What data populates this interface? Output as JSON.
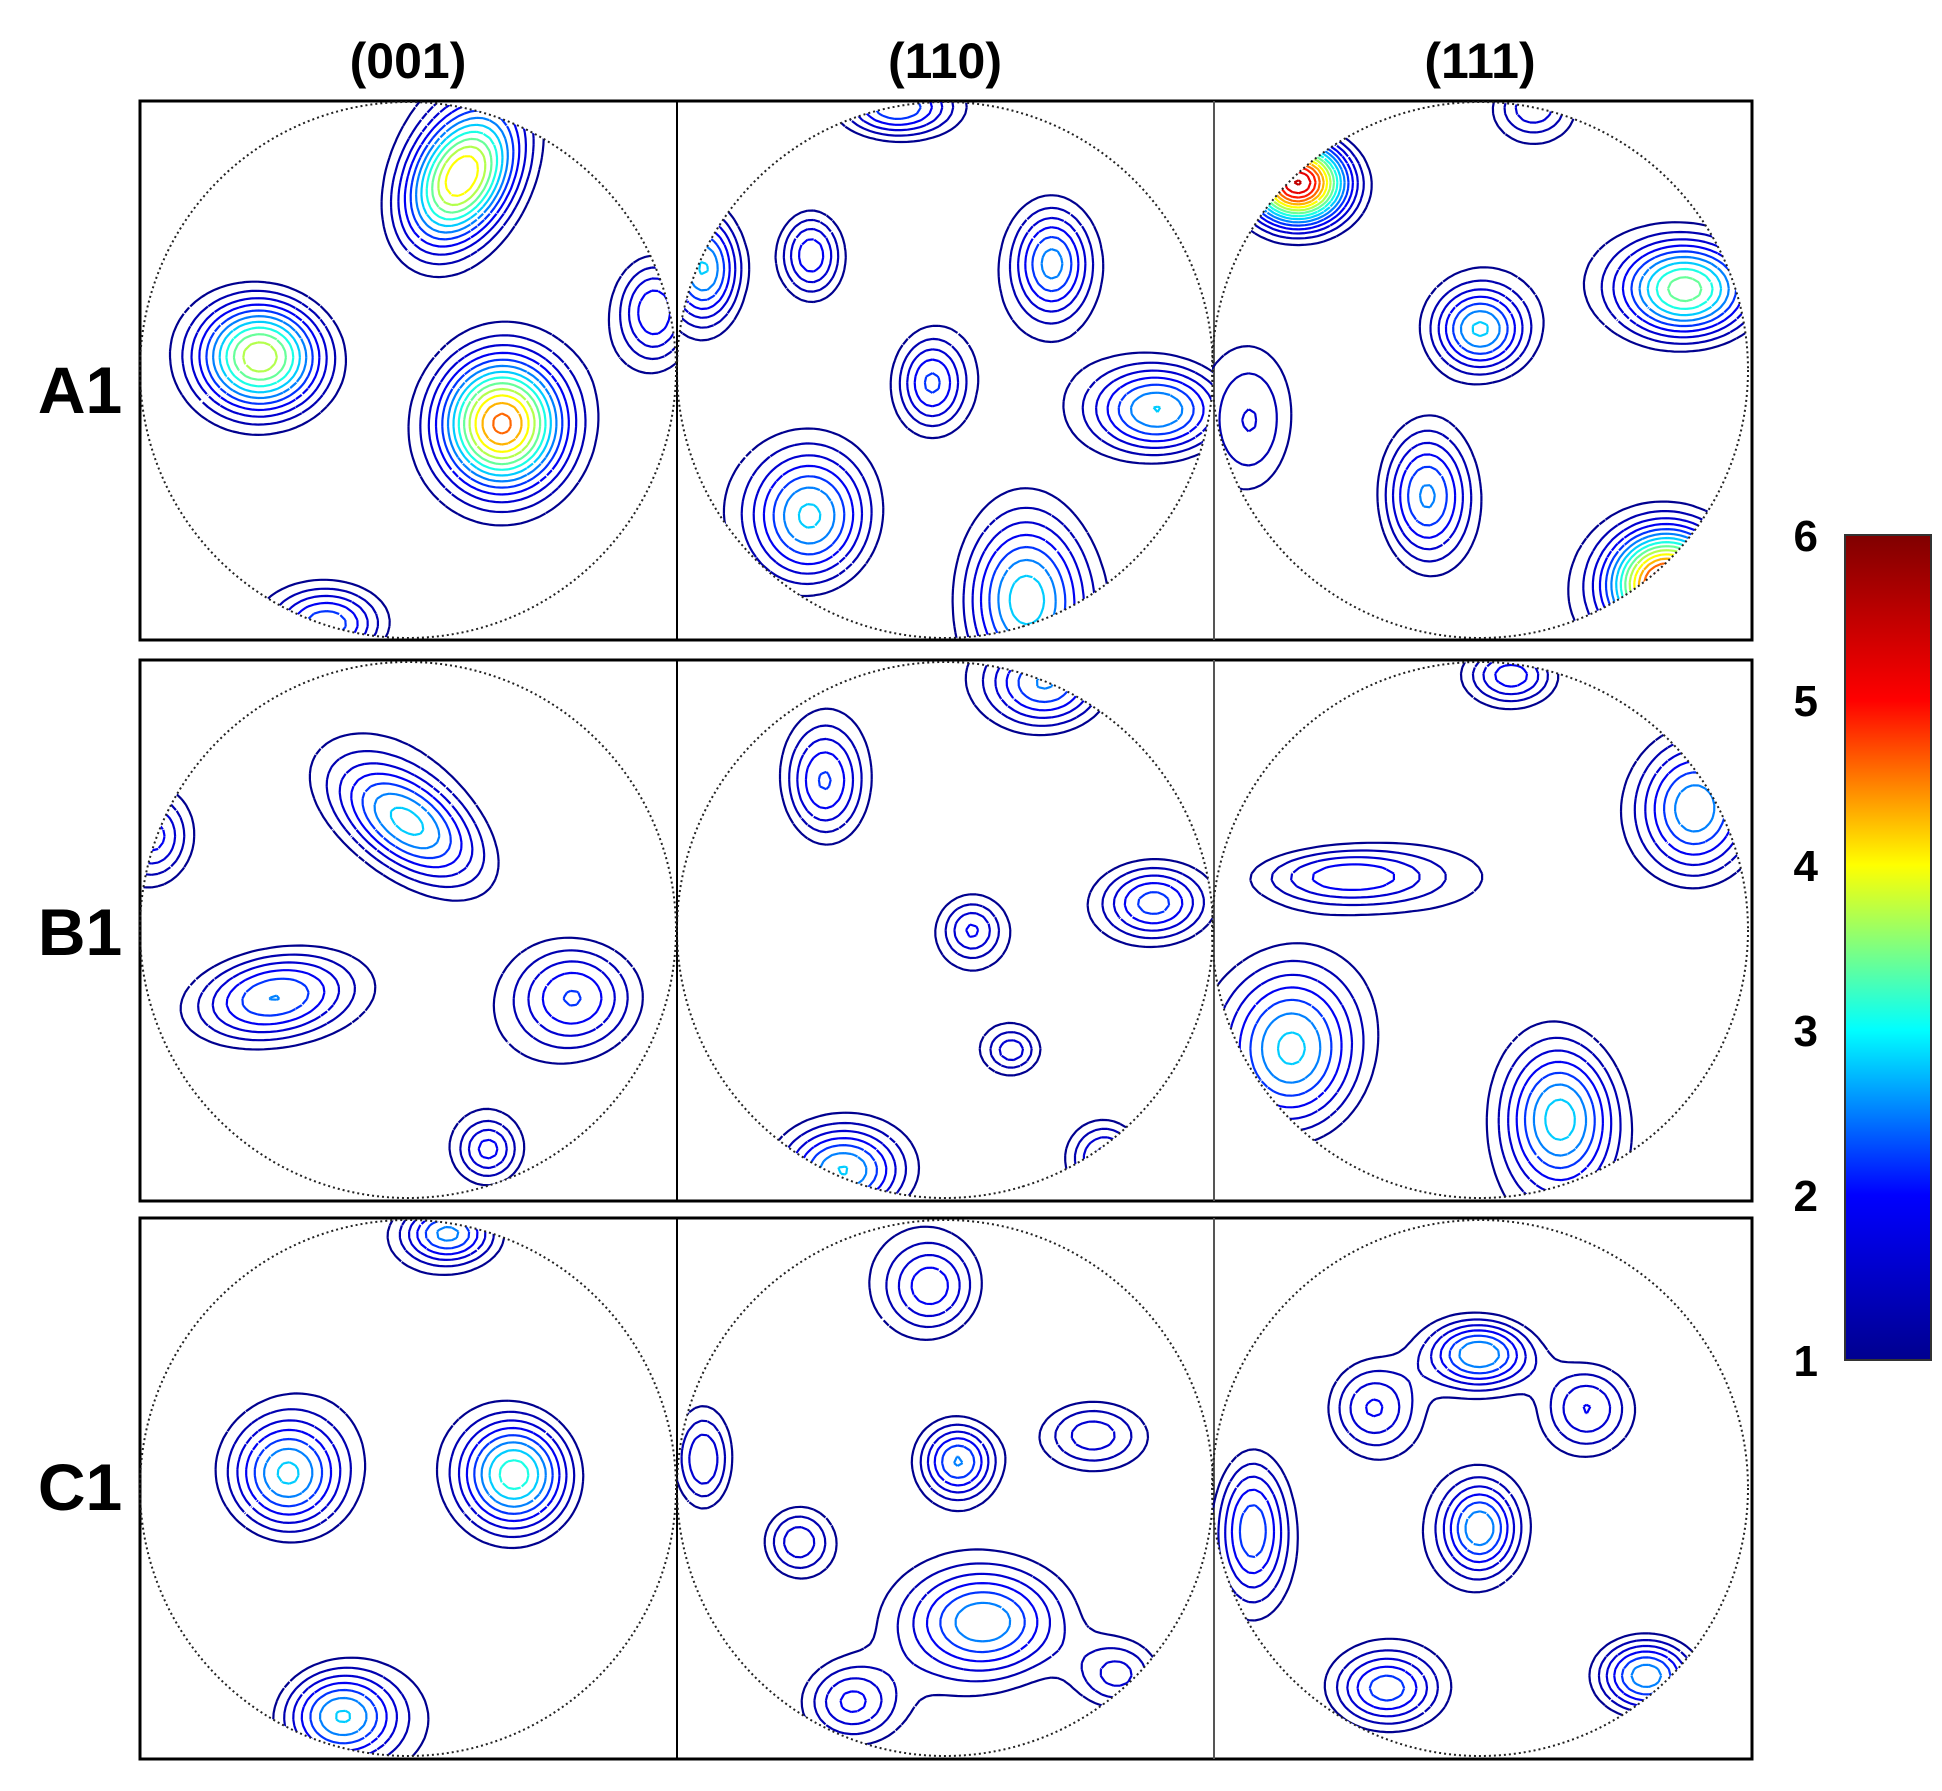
{
  "chart_data": {
    "type": "pole-figure-contour",
    "columns": [
      "(001)",
      "(110)",
      "(111)"
    ],
    "rows": [
      "A1",
      "B1",
      "C1"
    ],
    "colorbar": {
      "min": 1,
      "max": 6,
      "ticks": [
        "1",
        "2",
        "3",
        "4",
        "5",
        "6"
      ],
      "colormap": [
        "#00008f",
        "#0000ff",
        "#00ffff",
        "#ffff00",
        "#ff0000",
        "#800000"
      ]
    },
    "panels": [
      {
        "row": "A1",
        "column": "(001)",
        "peaks": [
          {
            "u": 0.2,
            "v": -0.72,
            "max": 4.3,
            "sx": 0.13,
            "sy": 0.2,
            "rot": 30
          },
          {
            "u": -0.55,
            "v": -0.05,
            "max": 4.2,
            "sx": 0.17,
            "sy": 0.15,
            "rot": 0
          },
          {
            "u": 0.35,
            "v": 0.2,
            "max": 4.5,
            "sx": 0.16,
            "sy": 0.17,
            "rot": 0
          },
          {
            "u": -0.3,
            "v": 0.95,
            "max": 2.6,
            "sx": 0.15,
            "sy": 0.1,
            "rot": 0
          },
          {
            "u": 0.92,
            "v": -0.22,
            "max": 2.2,
            "sx": 0.1,
            "sy": 0.14,
            "rot": 0
          }
        ]
      },
      {
        "row": "A1",
        "column": "(110)",
        "peaks": [
          {
            "u": -0.18,
            "v": -0.98,
            "max": 2.6,
            "sx": 0.15,
            "sy": 0.08,
            "rot": 0
          },
          {
            "u": -0.5,
            "v": -0.43,
            "max": 2.4,
            "sx": 0.09,
            "sy": 0.12,
            "rot": 0
          },
          {
            "u": 0.4,
            "v": -0.4,
            "max": 2.5,
            "sx": 0.1,
            "sy": 0.14,
            "rot": 0
          },
          {
            "u": -0.9,
            "v": -0.38,
            "max": 3.0,
            "sx": 0.1,
            "sy": 0.15,
            "rot": 0
          },
          {
            "u": -0.05,
            "v": 0.05,
            "max": 2.2,
            "sx": 0.09,
            "sy": 0.12,
            "rot": 0
          },
          {
            "u": 0.8,
            "v": 0.15,
            "max": 3.0,
            "sx": 0.18,
            "sy": 0.12,
            "rot": 0
          },
          {
            "u": -0.5,
            "v": 0.55,
            "max": 3.0,
            "sx": 0.16,
            "sy": 0.18,
            "rot": 0
          },
          {
            "u": 0.3,
            "v": 0.85,
            "max": 3.0,
            "sx": 0.16,
            "sy": 0.22,
            "rot": 0
          }
        ]
      },
      {
        "row": "A1",
        "column": "(111)",
        "peaks": [
          {
            "u": -0.68,
            "v": -0.7,
            "max": 5.8,
            "sx": 0.13,
            "sy": 0.11,
            "rot": 0
          },
          {
            "u": 0.2,
            "v": -0.98,
            "max": 1.8,
            "sx": 0.1,
            "sy": 0.08,
            "rot": 0
          },
          {
            "u": 0.77,
            "v": -0.3,
            "max": 3.8,
            "sx": 0.18,
            "sy": 0.13,
            "rot": 0
          },
          {
            "u": 0.0,
            "v": -0.15,
            "max": 2.8,
            "sx": 0.12,
            "sy": 0.11,
            "rot": 0
          },
          {
            "u": -0.2,
            "v": 0.47,
            "max": 2.8,
            "sx": 0.12,
            "sy": 0.18,
            "rot": 0
          },
          {
            "u": 0.7,
            "v": 0.8,
            "max": 5.2,
            "sx": 0.15,
            "sy": 0.14,
            "rot": 0
          },
          {
            "u": -0.85,
            "v": 0.2,
            "max": 1.6,
            "sx": 0.12,
            "sy": 0.2,
            "rot": 0
          }
        ]
      },
      {
        "row": "B1",
        "column": "(001)",
        "peaks": [
          {
            "u": 0.0,
            "v": -0.4,
            "max": 2.9,
            "sx": 0.22,
            "sy": 0.12,
            "rot": 35
          },
          {
            "u": -0.5,
            "v": 0.25,
            "max": 2.8,
            "sx": 0.22,
            "sy": 0.12,
            "rot": -10
          },
          {
            "u": 0.62,
            "v": 0.25,
            "max": 2.2,
            "sx": 0.16,
            "sy": 0.14,
            "rot": 0
          },
          {
            "u": -0.95,
            "v": -0.35,
            "max": 2.0,
            "sx": 0.1,
            "sy": 0.12,
            "rot": 0
          },
          {
            "u": 0.3,
            "v": 0.82,
            "max": 1.9,
            "sx": 0.08,
            "sy": 0.08,
            "rot": 0
          }
        ]
      },
      {
        "row": "B1",
        "column": "(110)",
        "peaks": [
          {
            "u": 0.38,
            "v": -0.92,
            "max": 2.7,
            "sx": 0.16,
            "sy": 0.12,
            "rot": 0
          },
          {
            "u": -0.45,
            "v": -0.55,
            "max": 2.4,
            "sx": 0.11,
            "sy": 0.16,
            "rot": 0
          },
          {
            "u": 0.78,
            "v": -0.1,
            "max": 2.4,
            "sx": 0.14,
            "sy": 0.1,
            "rot": 0
          },
          {
            "u": 0.1,
            "v": 0.0,
            "max": 1.8,
            "sx": 0.08,
            "sy": 0.08,
            "rot": 0
          },
          {
            "u": 0.25,
            "v": 0.45,
            "max": 1.7,
            "sx": 0.07,
            "sy": 0.06,
            "rot": 0
          },
          {
            "u": -0.38,
            "v": 0.9,
            "max": 3.0,
            "sx": 0.16,
            "sy": 0.12,
            "rot": 0
          },
          {
            "u": 0.6,
            "v": 0.85,
            "max": 2.2,
            "sx": 0.1,
            "sy": 0.1,
            "rot": 0
          }
        ]
      },
      {
        "row": "B1",
        "column": "(111)",
        "peaks": [
          {
            "u": 0.8,
            "v": -0.45,
            "max": 2.8,
            "sx": 0.15,
            "sy": 0.18,
            "rot": 0
          },
          {
            "u": 0.12,
            "v": -0.95,
            "max": 2.2,
            "sx": 0.12,
            "sy": 0.08,
            "rot": 0
          },
          {
            "u": -0.5,
            "v": -0.2,
            "max": 2.2,
            "sx": 0.25,
            "sy": 0.08,
            "rot": 0
          },
          {
            "u": -0.7,
            "v": 0.45,
            "max": 3.0,
            "sx": 0.18,
            "sy": 0.22,
            "rot": 0
          },
          {
            "u": 0.3,
            "v": 0.7,
            "max": 3.0,
            "sx": 0.15,
            "sy": 0.2,
            "rot": 0
          }
        ]
      },
      {
        "row": "C1",
        "column": "(001)",
        "peaks": [
          {
            "u": -0.45,
            "v": -0.05,
            "max": 2.9,
            "sx": 0.15,
            "sy": 0.15,
            "rot": 0
          },
          {
            "u": 0.4,
            "v": -0.05,
            "max": 3.5,
            "sx": 0.15,
            "sy": 0.15,
            "rot": 0
          },
          {
            "u": -0.25,
            "v": 0.85,
            "max": 2.8,
            "sx": 0.15,
            "sy": 0.12,
            "rot": 0
          },
          {
            "u": 0.15,
            "v": -0.95,
            "max": 2.6,
            "sx": 0.12,
            "sy": 0.08,
            "rot": 0
          }
        ]
      },
      {
        "row": "C1",
        "column": "(110)",
        "peaks": [
          {
            "u": 0.05,
            "v": -0.1,
            "max": 2.6,
            "sx": 0.1,
            "sy": 0.1,
            "rot": 0
          },
          {
            "u": 0.15,
            "v": 0.5,
            "max": 2.6,
            "sx": 0.2,
            "sy": 0.14,
            "rot": 0
          },
          {
            "u": -0.05,
            "v": -0.75,
            "max": 2.0,
            "sx": 0.12,
            "sy": 0.12,
            "rot": 0
          },
          {
            "u": -0.55,
            "v": 0.2,
            "max": 2.0,
            "sx": 0.1,
            "sy": 0.1,
            "rot": 0
          },
          {
            "u": 0.55,
            "v": -0.2,
            "max": 2.0,
            "sx": 0.15,
            "sy": 0.1,
            "rot": 0
          },
          {
            "u": -0.35,
            "v": 0.8,
            "max": 1.9,
            "sx": 0.12,
            "sy": 0.1,
            "rot": 0
          },
          {
            "u": 0.65,
            "v": 0.7,
            "max": 1.9,
            "sx": 0.12,
            "sy": 0.1,
            "rot": 0
          },
          {
            "u": -0.9,
            "v": -0.1,
            "max": 2.1,
            "sx": 0.08,
            "sy": 0.14,
            "rot": 0
          }
        ]
      },
      {
        "row": "C1",
        "column": "(111)",
        "peaks": [
          {
            "u": 0.0,
            "v": -0.5,
            "max": 2.9,
            "sx": 0.14,
            "sy": 0.09,
            "rot": 0
          },
          {
            "u": 0.0,
            "v": 0.15,
            "max": 2.6,
            "sx": 0.1,
            "sy": 0.12,
            "rot": 0
          },
          {
            "u": -0.85,
            "v": 0.15,
            "max": 2.6,
            "sx": 0.1,
            "sy": 0.2,
            "rot": 0
          },
          {
            "u": -0.35,
            "v": 0.75,
            "max": 2.4,
            "sx": 0.14,
            "sy": 0.1,
            "rot": 0
          },
          {
            "u": 0.62,
            "v": 0.7,
            "max": 3.0,
            "sx": 0.13,
            "sy": 0.1,
            "rot": 0
          },
          {
            "u": 0.4,
            "v": -0.3,
            "max": 2.0,
            "sx": 0.12,
            "sy": 0.12,
            "rot": 0
          },
          {
            "u": -0.4,
            "v": -0.3,
            "max": 2.0,
            "sx": 0.12,
            "sy": 0.12,
            "rot": 0
          }
        ]
      }
    ]
  }
}
